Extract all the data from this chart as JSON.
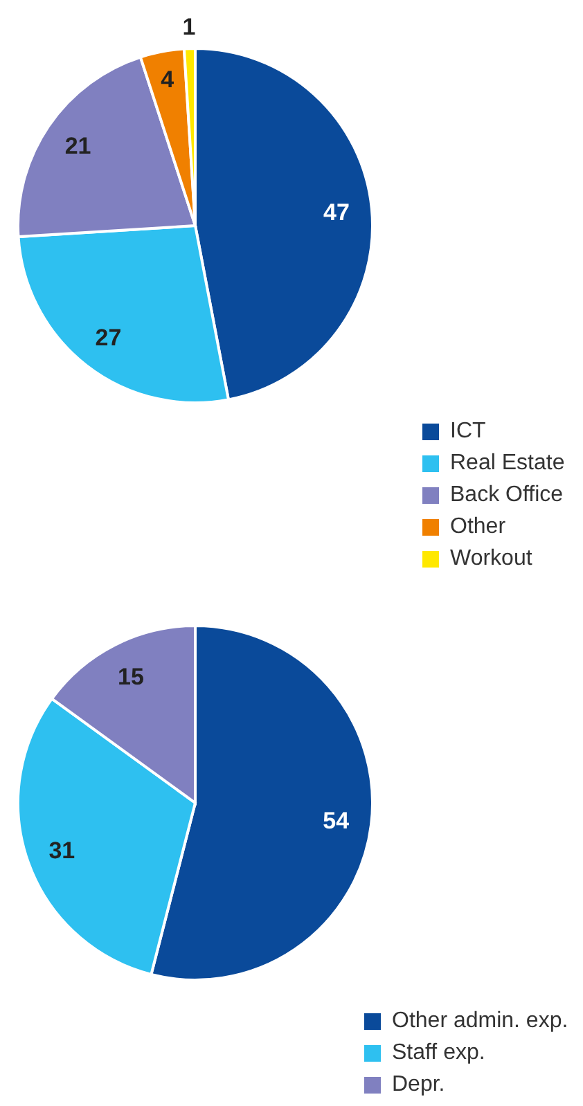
{
  "chart_data": [
    {
      "type": "pie",
      "categories": [
        "ICT",
        "Real Estate",
        "Back Office",
        "Other",
        "Workout"
      ],
      "values": [
        47,
        27,
        21,
        4,
        1
      ],
      "colors": [
        "#0a4a9a",
        "#2ec0f0",
        "#8080c0",
        "#f08000",
        "#ffe800"
      ],
      "data_labels": true,
      "legend": "bottom right"
    },
    {
      "type": "pie",
      "categories": [
        "Other admin. exp.",
        "Staff exp.",
        "Depr."
      ],
      "values": [
        54,
        31,
        15
      ],
      "colors": [
        "#0a4a9a",
        "#2ec0f0",
        "#8080c0"
      ],
      "data_labels": true,
      "legend": "bottom right"
    }
  ]
}
